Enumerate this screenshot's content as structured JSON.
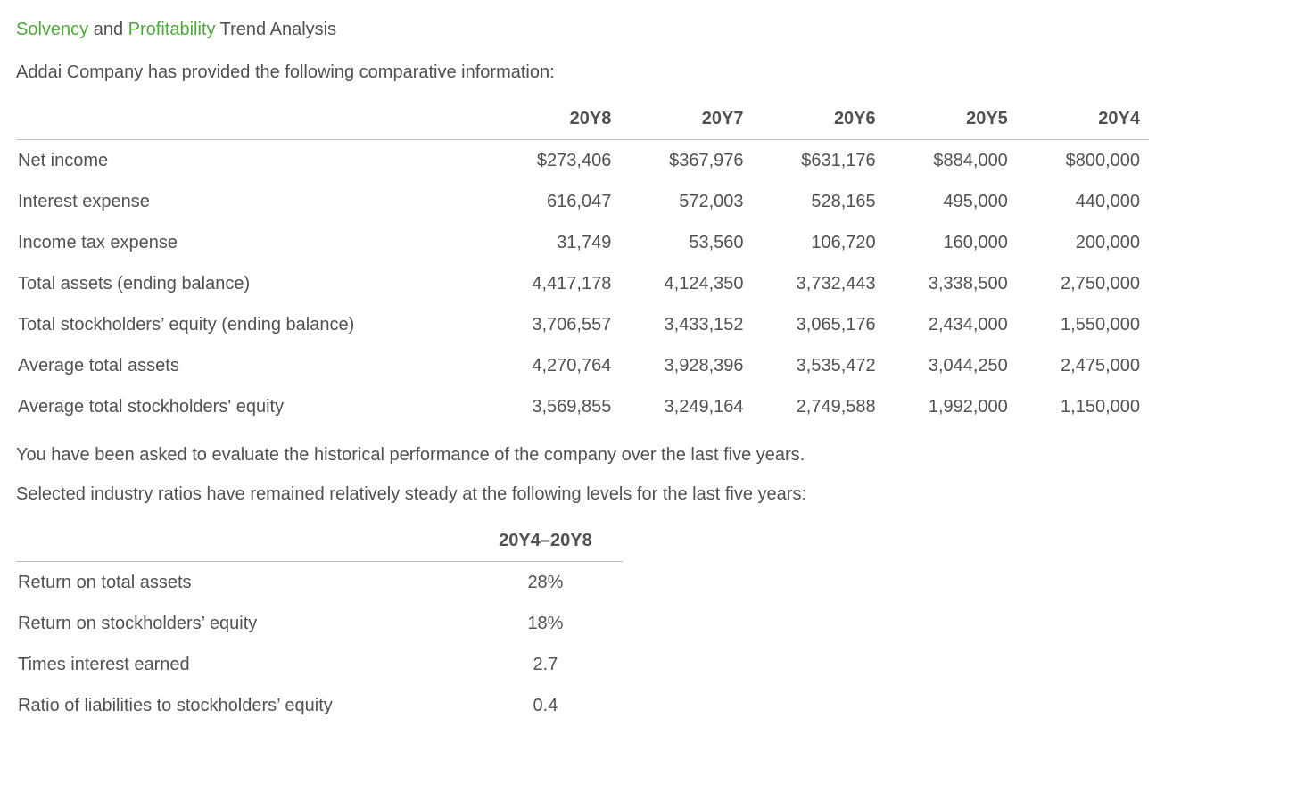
{
  "title": {
    "link1": "Solvency",
    "and": " and ",
    "link2": "Profitability",
    "rest": " Trend Analysis"
  },
  "intro": "Addai Company has provided the following comparative information:",
  "comparative": {
    "headers": [
      "",
      "20Y8",
      "20Y7",
      "20Y6",
      "20Y5",
      "20Y4"
    ],
    "rows": [
      {
        "label": "Net income",
        "y8": "$273,406",
        "y7": "$367,976",
        "y6": "$631,176",
        "y5": "$884,000",
        "y4": "$800,000"
      },
      {
        "label": "Interest expense",
        "y8": "616,047",
        "y7": "572,003",
        "y6": "528,165",
        "y5": "495,000",
        "y4": "440,000"
      },
      {
        "label": "Income tax expense",
        "y8": "31,749",
        "y7": "53,560",
        "y6": "106,720",
        "y5": "160,000",
        "y4": "200,000"
      },
      {
        "label": "Total assets (ending balance)",
        "y8": "4,417,178",
        "y7": "4,124,350",
        "y6": "3,732,443",
        "y5": "3,338,500",
        "y4": "2,750,000"
      },
      {
        "label": "Total stockholders’ equity (ending balance)",
        "y8": "3,706,557",
        "y7": "3,433,152",
        "y6": "3,065,176",
        "y5": "2,434,000",
        "y4": "1,550,000"
      },
      {
        "label": "Average total assets",
        "y8": "4,270,764",
        "y7": "3,928,396",
        "y6": "3,535,472",
        "y5": "3,044,250",
        "y4": "2,475,000"
      },
      {
        "label": "Average total stockholders' equity",
        "y8": "3,569,855",
        "y7": "3,249,164",
        "y6": "2,749,588",
        "y5": "1,992,000",
        "y4": "1,150,000"
      }
    ]
  },
  "para1": "You have been asked to evaluate the historical performance of the company over the last five years.",
  "para2": "Selected industry ratios have remained relatively steady at the following levels for the last five years:",
  "industry": {
    "header": [
      "",
      "20Y4–20Y8"
    ],
    "rows": [
      {
        "label": "Return on total assets",
        "value": "28%"
      },
      {
        "label": "Return on stockholders’ equity",
        "value": "18%"
      },
      {
        "label": "Times interest earned",
        "value": "2.7"
      },
      {
        "label": "Ratio of liabilities to stockholders’ equity",
        "value": "0.4"
      }
    ]
  },
  "colors": {
    "text": "#515151",
    "link": "#4fa83d",
    "border": "#bfbfbf",
    "background": "#ffffff"
  }
}
